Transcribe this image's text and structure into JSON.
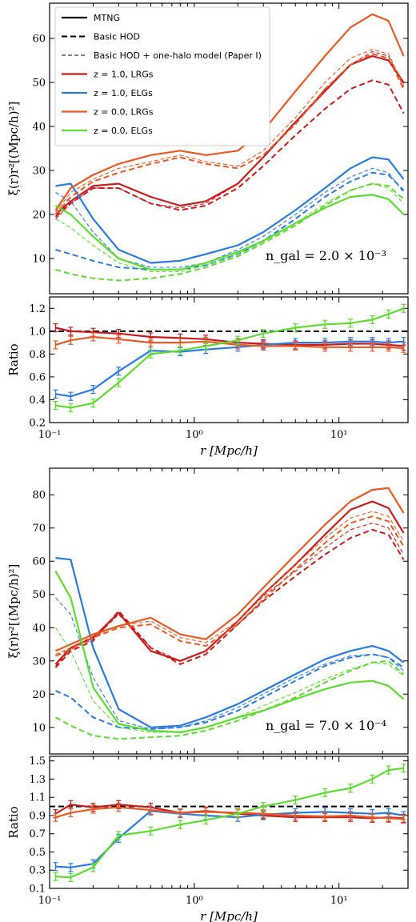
{
  "colors": {
    "z1_lrg": "#c81d1d",
    "z1_elg": "#2b7bde",
    "z0_lrg": "#e65a25",
    "z0_elg": "#5ddb31",
    "ref": "#000000"
  },
  "legend": [
    {
      "label": "MTNG",
      "style": "solid",
      "color": "#000000"
    },
    {
      "label": "Basic HOD",
      "style": "dashed",
      "color": "#000000"
    },
    {
      "label": "Basic HOD + one-halo model (Paper I)",
      "style": "thin-dashed",
      "color": "#000000"
    },
    {
      "label": "z = 1.0, LRGs",
      "style": "solid",
      "color": "#c81d1d"
    },
    {
      "label": "z = 1.0, ELGs",
      "style": "solid",
      "color": "#2b7bde"
    },
    {
      "label": "z = 0.0, LRGs",
      "style": "solid",
      "color": "#e65a25"
    },
    {
      "label": "z = 0.0, ELGs",
      "style": "solid",
      "color": "#5ddb31"
    }
  ],
  "chart_data": [
    {
      "type": "line",
      "panel": "top-main",
      "xscale": "log",
      "xlim": [
        0.1,
        30
      ],
      "ylim": [
        2,
        68
      ],
      "yticks": [
        10,
        20,
        30,
        40,
        50,
        60
      ],
      "ylabel": "ξ(r)r²[(Mpc/h)²]",
      "annotation": "n_gal = 2.0 × 10⁻³",
      "x": [
        0.11,
        0.14,
        0.2,
        0.3,
        0.5,
        0.8,
        1.2,
        2,
        3,
        5,
        8,
        12,
        17,
        22,
        28
      ],
      "series": [
        {
          "group": "z1_lrg",
          "kind": "mtng",
          "values": [
            20,
            23,
            26.5,
            27,
            24,
            22,
            23,
            27,
            33,
            41,
            48,
            54,
            56,
            55,
            50
          ]
        },
        {
          "group": "z1_lrg",
          "kind": "hod",
          "values": [
            19.5,
            22.5,
            26,
            26,
            22.5,
            21,
            22,
            26,
            31,
            38,
            44,
            48.5,
            50.5,
            49.5,
            43
          ]
        },
        {
          "group": "z1_lrg",
          "kind": "one-halo",
          "values": [
            19,
            22.5,
            26,
            26,
            22.5,
            21.5,
            22.5,
            27,
            33,
            41,
            48.5,
            54,
            57,
            56,
            49
          ]
        },
        {
          "group": "z1_elg",
          "kind": "mtng",
          "values": [
            26.5,
            27,
            19,
            12,
            9,
            9.5,
            11,
            13,
            16,
            21,
            26,
            30.5,
            33,
            32.5,
            28
          ]
        },
        {
          "group": "z1_elg",
          "kind": "hod",
          "values": [
            12,
            11,
            9.5,
            8,
            7.5,
            7.5,
            8.5,
            11,
            14,
            19,
            24,
            27.5,
            29.5,
            29,
            25.5
          ]
        },
        {
          "group": "z1_elg",
          "kind": "one-halo",
          "values": [
            25,
            23,
            16,
            10,
            8,
            8,
            9,
            12,
            15,
            20,
            25,
            28.5,
            30.5,
            29.5,
            25
          ]
        },
        {
          "group": "z0_lrg",
          "kind": "mtng",
          "values": [
            21,
            26,
            29,
            31.5,
            33.5,
            34.5,
            33.5,
            34.5,
            39,
            48,
            56,
            62.5,
            65.5,
            64,
            56
          ]
        },
        {
          "group": "z0_lrg",
          "kind": "hod",
          "values": [
            20,
            24,
            27.5,
            29.5,
            31.5,
            33,
            31.5,
            30.5,
            33.5,
            40.5,
            48.5,
            54,
            56.5,
            55.5,
            48.5
          ]
        },
        {
          "group": "z0_lrg",
          "kind": "one-halo",
          "values": [
            20.5,
            25,
            28,
            30.5,
            32,
            33.5,
            32,
            31,
            34.5,
            42,
            50,
            55.5,
            57.5,
            56.5,
            49.5
          ]
        },
        {
          "group": "z0_elg",
          "kind": "mtng",
          "values": [
            22,
            20,
            15,
            10,
            7.5,
            7.5,
            9,
            11.5,
            14,
            18,
            21.5,
            24,
            24.5,
            23.5,
            20
          ]
        },
        {
          "group": "z0_elg",
          "kind": "hod",
          "values": [
            7.5,
            6.5,
            5.5,
            5,
            5.5,
            6.5,
            8,
            10.5,
            13.5,
            17.5,
            22,
            25.5,
            27,
            26.5,
            23.5
          ]
        },
        {
          "group": "z0_elg",
          "kind": "one-halo",
          "values": [
            19,
            17,
            13,
            9,
            7,
            7,
            8.5,
            11,
            14,
            18,
            22.5,
            25.5,
            27,
            26,
            22.5
          ]
        }
      ]
    },
    {
      "type": "line",
      "panel": "top-ratio",
      "xscale": "log",
      "xlim": [
        0.1,
        30
      ],
      "ylim": [
        0.2,
        1.3
      ],
      "yticks": [
        0.2,
        0.4,
        0.6,
        0.8,
        1.0,
        1.2
      ],
      "xticks": [
        "10⁻¹",
        "10⁰",
        "10¹"
      ],
      "ylabel": "Ratio",
      "xlabel": "r [Mpc/h]",
      "reference": 1.0,
      "x": [
        0.11,
        0.14,
        0.2,
        0.3,
        0.5,
        0.8,
        1.2,
        2,
        3,
        5,
        8,
        12,
        17,
        22,
        28
      ],
      "series": [
        {
          "group": "z1_lrg",
          "values": [
            1.03,
            1.0,
            0.99,
            0.98,
            0.95,
            0.94,
            0.93,
            0.9,
            0.89,
            0.88,
            0.88,
            0.89,
            0.89,
            0.88,
            0.87
          ]
        },
        {
          "group": "z1_elg",
          "values": [
            0.45,
            0.43,
            0.49,
            0.65,
            0.83,
            0.82,
            0.84,
            0.86,
            0.88,
            0.9,
            0.9,
            0.91,
            0.91,
            0.9,
            0.91
          ]
        },
        {
          "group": "z0_lrg",
          "values": [
            0.88,
            0.92,
            0.95,
            0.93,
            0.9,
            0.9,
            0.91,
            0.88,
            0.87,
            0.87,
            0.86,
            0.86,
            0.86,
            0.86,
            0.85
          ]
        },
        {
          "group": "z0_elg",
          "values": [
            0.35,
            0.33,
            0.37,
            0.55,
            0.8,
            0.83,
            0.87,
            0.92,
            0.98,
            1.03,
            1.06,
            1.07,
            1.1,
            1.15,
            1.2
          ]
        }
      ]
    },
    {
      "type": "line",
      "panel": "bottom-main",
      "xscale": "log",
      "xlim": [
        0.1,
        30
      ],
      "ylim": [
        2,
        88
      ],
      "yticks": [
        10,
        20,
        30,
        40,
        50,
        60,
        70,
        80
      ],
      "ylabel": "ξ(r)r²[(Mpc/h)²]",
      "annotation": "n_gal = 7.0 × 10⁻⁴",
      "x": [
        0.11,
        0.14,
        0.2,
        0.3,
        0.5,
        0.8,
        1.2,
        2,
        3,
        5,
        8,
        12,
        17,
        22,
        28
      ],
      "series": [
        {
          "group": "z1_lrg",
          "kind": "mtng",
          "values": [
            29,
            34,
            37,
            44.5,
            33,
            30,
            33,
            42,
            50,
            59,
            68,
            75.5,
            78,
            76,
            68.5
          ]
        },
        {
          "group": "z1_lrg",
          "kind": "hod",
          "values": [
            28,
            33,
            36,
            45,
            34,
            29,
            32,
            41,
            48,
            55.5,
            62,
            67,
            69.5,
            68,
            60.5
          ]
        },
        {
          "group": "z1_lrg",
          "kind": "one-halo",
          "values": [
            28.5,
            33.5,
            36.5,
            44,
            34,
            30,
            33,
            42,
            49.5,
            57,
            64,
            69.5,
            71.5,
            70,
            62
          ]
        },
        {
          "group": "z1_elg",
          "kind": "mtng",
          "values": [
            61,
            60.5,
            34,
            15.5,
            10,
            10.5,
            13,
            17,
            21,
            26,
            30.5,
            33,
            34.5,
            33,
            29.5
          ]
        },
        {
          "group": "z1_elg",
          "kind": "hod",
          "values": [
            21,
            19,
            13,
            10,
            9.5,
            10,
            11.5,
            15,
            19,
            24,
            28.5,
            31,
            32,
            31,
            28
          ]
        },
        {
          "group": "z1_elg",
          "kind": "one-halo",
          "values": [
            49,
            44,
            25,
            12,
            9.5,
            10,
            12,
            16,
            20,
            25,
            29,
            31.5,
            32,
            31,
            27
          ]
        },
        {
          "group": "z0_lrg",
          "kind": "mtng",
          "values": [
            33,
            35,
            38,
            40.5,
            43,
            38,
            36.5,
            44,
            52,
            62,
            71,
            78,
            81.5,
            82,
            74.5
          ]
        },
        {
          "group": "z0_lrg",
          "kind": "hod",
          "values": [
            31.5,
            33.5,
            37,
            40,
            41,
            36,
            34.5,
            41,
            48.5,
            57.5,
            65.5,
            71.5,
            73.5,
            72,
            64.5
          ]
        },
        {
          "group": "z0_lrg",
          "kind": "one-halo",
          "values": [
            32,
            34,
            37.5,
            40.5,
            42,
            37,
            35.5,
            42,
            50,
            59,
            67,
            73,
            75,
            73.5,
            66
          ]
        },
        {
          "group": "z0_elg",
          "kind": "mtng",
          "values": [
            57,
            49,
            22,
            11,
            9,
            8.5,
            10,
            13,
            15,
            18.5,
            21.5,
            23.5,
            24,
            22.5,
            18.5
          ]
        },
        {
          "group": "z0_elg",
          "kind": "hod",
          "values": [
            13,
            10.5,
            7.5,
            6.5,
            7,
            7.5,
            9,
            12,
            15,
            19,
            23.5,
            27,
            29.5,
            30,
            26
          ]
        },
        {
          "group": "z0_elg",
          "kind": "one-halo",
          "values": [
            40,
            33,
            18,
            10,
            8.5,
            8.5,
            10,
            13,
            16.5,
            20.5,
            24.5,
            27.5,
            29.5,
            29,
            25.5
          ]
        }
      ]
    },
    {
      "type": "line",
      "panel": "bottom-ratio",
      "xscale": "log",
      "xlim": [
        0.1,
        30
      ],
      "ylim": [
        0.1,
        1.55
      ],
      "yticks": [
        0.1,
        0.3,
        0.5,
        0.7,
        0.9,
        1.1,
        1.3,
        1.5
      ],
      "xticks": [
        "10⁻¹",
        "10⁰",
        "10¹"
      ],
      "ylabel": "Ratio",
      "xlabel": "r [Mpc/h]",
      "reference": 1.0,
      "x": [
        0.11,
        0.14,
        0.2,
        0.3,
        0.5,
        0.8,
        1.2,
        2,
        3,
        5,
        8,
        12,
        17,
        22,
        28
      ],
      "series": [
        {
          "group": "z1_lrg",
          "values": [
            0.92,
            1.02,
            0.99,
            1.02,
            0.99,
            0.93,
            0.95,
            0.92,
            0.9,
            0.88,
            0.88,
            0.88,
            0.87,
            0.88,
            0.87
          ]
        },
        {
          "group": "z1_elg",
          "values": [
            0.34,
            0.33,
            0.37,
            0.65,
            0.95,
            0.92,
            0.9,
            0.88,
            0.91,
            0.93,
            0.94,
            0.93,
            0.92,
            0.93,
            0.9
          ]
        },
        {
          "group": "z0_lrg",
          "values": [
            0.88,
            0.93,
            0.97,
            0.99,
            0.96,
            0.93,
            0.94,
            0.93,
            0.92,
            0.9,
            0.89,
            0.9,
            0.88,
            0.87,
            0.86
          ]
        },
        {
          "group": "z0_elg",
          "values": [
            0.23,
            0.22,
            0.33,
            0.68,
            0.73,
            0.8,
            0.85,
            0.92,
            1.0,
            1.07,
            1.15,
            1.2,
            1.3,
            1.4,
            1.42
          ]
        }
      ]
    }
  ]
}
